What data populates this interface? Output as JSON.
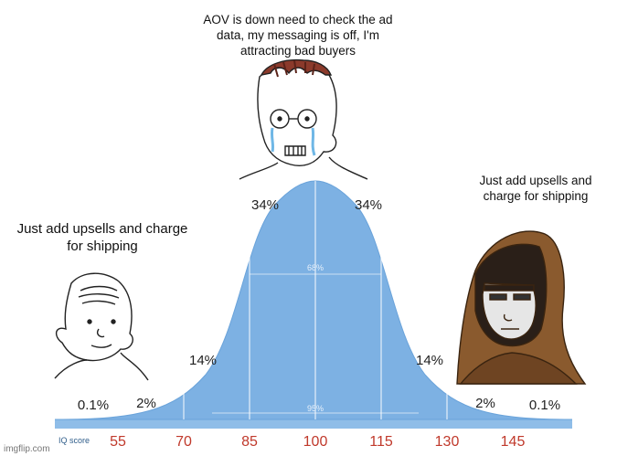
{
  "captions": {
    "top": "AOV is down need to check the ad data, my messaging is off, I'm attracting bad buyers",
    "left": "Just add upsells and charge for shipping",
    "right": "Just add upsells and charge for shipping"
  },
  "percentages": {
    "center_left": "34%",
    "center_right": "34%",
    "mid_left": "14%",
    "mid_right": "14%",
    "tail_left": "2%",
    "tail_right": "2%",
    "edge_left": "0.1%",
    "edge_right": "0.1%",
    "inner_68": "68%",
    "inner_95": "95%"
  },
  "axis": {
    "label": "IQ score",
    "ticks": [
      "55",
      "70",
      "85",
      "100",
      "115",
      "130",
      "145"
    ]
  },
  "watermark": "imgflip.com",
  "colors": {
    "curve_fill": "#7db1e3",
    "axis_band": "#8fbde8",
    "tick_text": "#c0392b"
  },
  "icons": [
    "wojak-left-face-icon",
    "wojak-middle-face-icon",
    "wojak-right-hooded-face-icon"
  ]
}
